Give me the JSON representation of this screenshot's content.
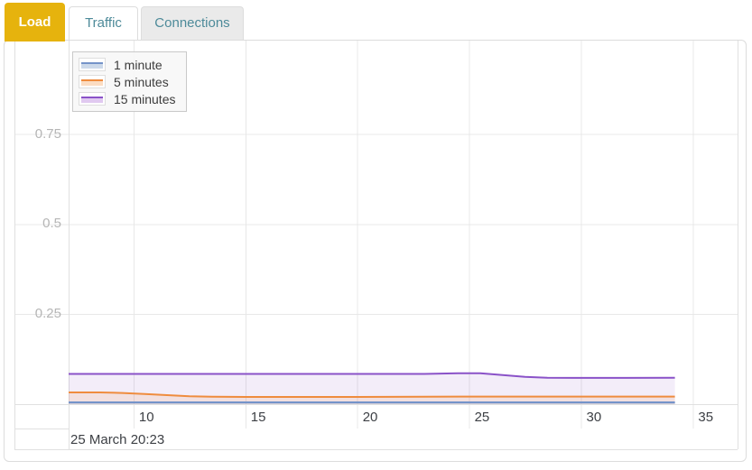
{
  "tabs": [
    {
      "label": "Load",
      "active": true
    },
    {
      "label": "Traffic",
      "active": false
    },
    {
      "label": "Connections",
      "active": false
    }
  ],
  "colors": {
    "active_tab_bg": "#e6b30d",
    "active_tab_text": "#ffffff",
    "tab_text": "#4d8a99",
    "inactive_tab_bg": "#eaeaea",
    "grid_line": "#e8e8e8",
    "grid_border": "#e0e0e0",
    "axis_text": "#3d4045",
    "y_axis_text": "#b5b5b5"
  },
  "chart_data": {
    "type": "area",
    "title": "Load",
    "xlabel": "",
    "ylabel": "",
    "x_ticks": [
      10,
      15,
      20,
      25,
      30,
      35
    ],
    "y_ticks": [
      0.25,
      0.5,
      0.75
    ],
    "xlim": [
      7.1,
      37.0
    ],
    "ylim": [
      0,
      1.01
    ],
    "grid": true,
    "legend_position": "top-left",
    "footer_timestamp": "25 March 20:23",
    "series": [
      {
        "name": "1 minute",
        "color": "#7493c9",
        "fill": "rgba(116,147,201,0.28)",
        "legend_fill": "#ccd9ea",
        "x": [
          7.1,
          12,
          18,
          25,
          30,
          34.2
        ],
        "values": [
          0.005,
          0.005,
          0.005,
          0.005,
          0.005,
          0.005
        ]
      },
      {
        "name": "5 minutes",
        "color": "#ef8c3e",
        "fill": "rgba(239,140,62,0.13)",
        "legend_fill": "#fbdcc2",
        "x": [
          7.1,
          8.5,
          9.5,
          10.5,
          11.5,
          12.5,
          13.5,
          15,
          17,
          20,
          25,
          30,
          34.2
        ],
        "values": [
          0.0325,
          0.0325,
          0.031,
          0.028,
          0.025,
          0.022,
          0.0205,
          0.02,
          0.02,
          0.02,
          0.021,
          0.021,
          0.021
        ]
      },
      {
        "name": "15 minutes",
        "color": "#8a52c8",
        "fill": "rgba(138,82,200,0.10)",
        "legend_fill": "#e0c9f0",
        "x": [
          7.1,
          10,
          15,
          20,
          23,
          24.5,
          25.5,
          26.5,
          27.5,
          28.5,
          30,
          32,
          34.2
        ],
        "values": [
          0.084,
          0.084,
          0.084,
          0.084,
          0.084,
          0.086,
          0.086,
          0.081,
          0.076,
          0.0735,
          0.073,
          0.073,
          0.0735
        ]
      }
    ]
  }
}
